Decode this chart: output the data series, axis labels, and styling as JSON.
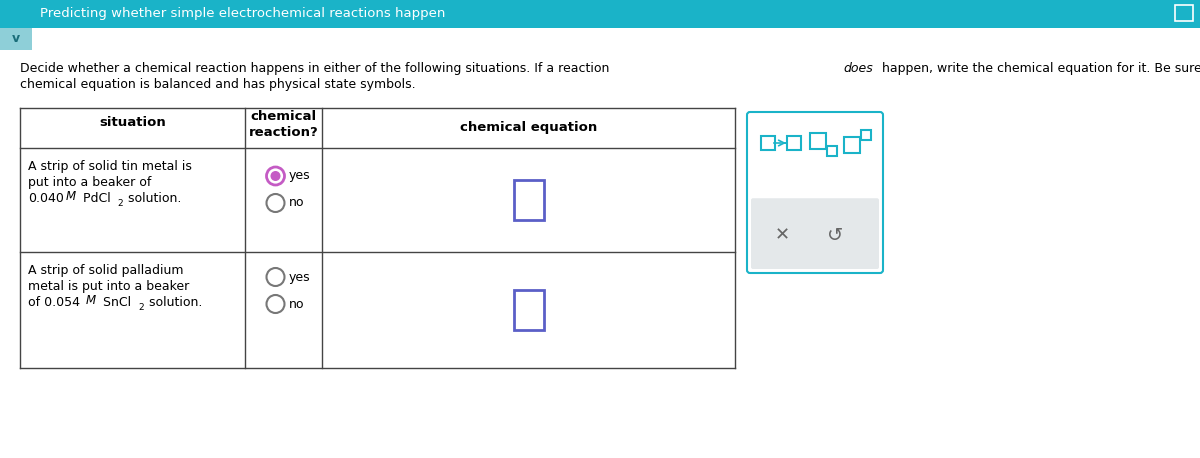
{
  "title": "Predicting whether simple electrochemical reactions happen",
  "title_bg": "#1ab3c8",
  "title_text_color": "#ffffff",
  "body_bg": "#ffffff",
  "intro_line1": "Decide whether a chemical reaction happens in either of the following situations. If a reaction does happen, write the chemical equation for it. Be sure your",
  "intro_line2": "chemical equation is balanced and has physical state symbols.",
  "intro_italic_word": "does",
  "table_border_color": "#444444",
  "radio_color": "#777777",
  "radio_selected_color": "#c45bc4",
  "input_box_color": "#5b5fc7",
  "toolbar_border": "#1ab3c8",
  "toolbar_icon_color": "#1ab3c8",
  "toolbar_bg_bottom": "#e4e8ea",
  "chevron_bg": "#8ecfd8",
  "chevron_text": "v"
}
